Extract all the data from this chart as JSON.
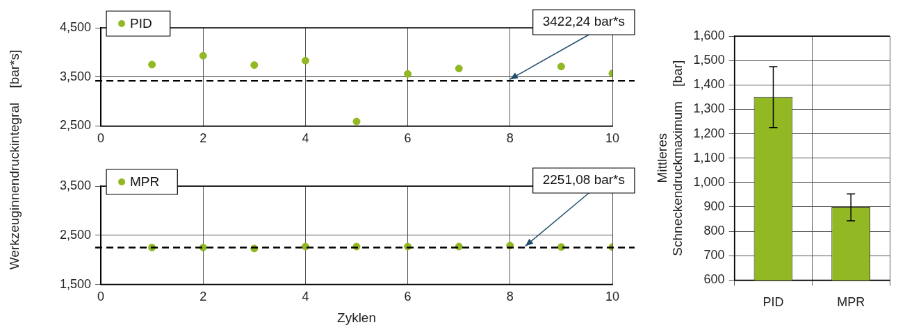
{
  "chart_data": [
    {
      "type": "scatter",
      "ylabel": "Werkzeuginnendruckintegral    [bar*s]",
      "x": [
        1,
        2,
        3,
        4,
        5,
        6,
        7,
        8,
        9,
        10
      ],
      "series": [
        {
          "name": "PID",
          "color": "#92b823",
          "values": [
            3750,
            3930,
            3740,
            3830,
            2590,
            3560,
            3670,
            null,
            3710,
            3570
          ]
        }
      ],
      "xlim": [
        0,
        10
      ],
      "xticks": [
        0,
        2,
        4,
        6,
        8,
        10
      ],
      "ylim": [
        2500,
        4500
      ],
      "yticks": [
        {
          "value": 2500,
          "label": "2,500"
        },
        {
          "value": 3500,
          "label": "3,500"
        },
        {
          "value": 4500,
          "label": "4,500"
        }
      ],
      "grid": true,
      "legend": "top left",
      "marker": "circle",
      "ref_lines": [
        {
          "axis": "y",
          "value": 3422.24,
          "color": "#000000",
          "line_style": "dashed"
        }
      ],
      "annotations": [
        {
          "text": "3422,24 bar*s",
          "x": 8,
          "y": 3422.24
        }
      ]
    },
    {
      "type": "scatter",
      "xlabel": "Zyklen",
      "x": [
        1,
        2,
        3,
        4,
        5,
        6,
        7,
        8,
        9,
        10
      ],
      "series": [
        {
          "name": "MPR",
          "color": "#92b823",
          "values": [
            2250,
            2250,
            2230,
            2270,
            2270,
            2270,
            2270,
            2290,
            2260,
            2260
          ]
        }
      ],
      "xlim": [
        0,
        10
      ],
      "xticks": [
        0,
        2,
        4,
        6,
        8,
        10
      ],
      "ylim": [
        1500,
        3500
      ],
      "yticks": [
        {
          "value": 1500,
          "label": "1,500"
        },
        {
          "value": 2500,
          "label": "2,500"
        },
        {
          "value": 3500,
          "label": "3,500"
        }
      ],
      "grid": true,
      "legend": "top left",
      "marker": "circle",
      "ref_lines": [
        {
          "axis": "y",
          "value": 2251.08,
          "color": "#000000",
          "line_style": "dashed"
        }
      ],
      "annotations": [
        {
          "text": "2251,08 bar*s",
          "x": 8.3,
          "y": 2251.08
        }
      ]
    },
    {
      "type": "bar",
      "ylabel": "Mittleres\nSchneckendruckmaximum    [bar]",
      "categories": [
        "PID",
        "MPR"
      ],
      "values": [
        1350,
        900
      ],
      "color": "#92b823",
      "errors": [
        [
          1225,
          1475
        ],
        [
          843,
          953
        ]
      ],
      "ylim": [
        600,
        1600
      ],
      "yticks": [
        600,
        700,
        800,
        900,
        {
          "value": 1000,
          "label": "1,000"
        },
        {
          "value": 1100,
          "label": "1,100"
        },
        {
          "value": 1200,
          "label": "1,200"
        },
        {
          "value": 1300,
          "label": "1,300"
        },
        {
          "value": 1400,
          "label": "1,400"
        },
        {
          "value": 1500,
          "label": "1,500"
        },
        {
          "value": 1600,
          "label": "1,600"
        }
      ],
      "grid": true
    }
  ]
}
